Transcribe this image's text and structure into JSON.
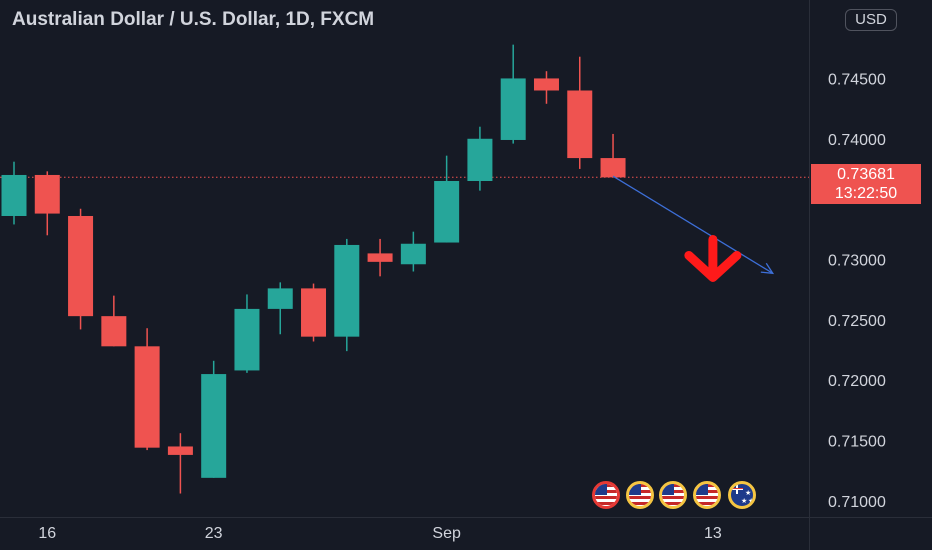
{
  "title": "Australian Dollar / U.S. Dollar, 1D, FXCM",
  "currency_button": "USD",
  "last_price": {
    "value": "0.73681",
    "countdown": "13:22:50"
  },
  "colors": {
    "up": "#26a69a",
    "down": "#ef5350",
    "background": "#161a25",
    "text": "#d1d4dc",
    "grid": "#2a2e39",
    "projection": "#3d6fd8",
    "arrow": "#ff1a1a"
  },
  "event_icons": [
    "us-flag-icon",
    "us-flag-icon",
    "us-flag-icon",
    "us-flag-icon",
    "australia-flag-icon"
  ],
  "chart_data": {
    "type": "candlestick",
    "symbol": "AUDUSD",
    "interval": "1D",
    "y_axis": {
      "side": "right",
      "range": [
        0.7065,
        0.7515
      ],
      "ticks": [
        "0.74500",
        "0.74000",
        "0.73000",
        "0.72500",
        "0.72000",
        "0.71500",
        "0.71000"
      ]
    },
    "x_axis": {
      "ticks": [
        {
          "label": "16",
          "index": 1
        },
        {
          "label": "23",
          "index": 6
        },
        {
          "label": "Sep",
          "index": 13
        },
        {
          "label": "13",
          "index": 21
        }
      ]
    },
    "grid": false,
    "candles": [
      {
        "date": "2021-08-13",
        "open": 0.7336,
        "high": 0.7381,
        "low": 0.7329,
        "close": 0.737
      },
      {
        "date": "2021-08-16",
        "open": 0.737,
        "high": 0.7373,
        "low": 0.732,
        "close": 0.7338
      },
      {
        "date": "2021-08-17",
        "open": 0.7336,
        "high": 0.7342,
        "low": 0.7242,
        "close": 0.7253
      },
      {
        "date": "2021-08-18",
        "open": 0.7253,
        "high": 0.727,
        "low": 0.7228,
        "close": 0.7228
      },
      {
        "date": "2021-08-19",
        "open": 0.7228,
        "high": 0.7243,
        "low": 0.7142,
        "close": 0.7144
      },
      {
        "date": "2021-08-20",
        "open": 0.7145,
        "high": 0.7156,
        "low": 0.7106,
        "close": 0.7138
      },
      {
        "date": "2021-08-23",
        "open": 0.7119,
        "high": 0.7216,
        "low": 0.7119,
        "close": 0.7205
      },
      {
        "date": "2021-08-24",
        "open": 0.7208,
        "high": 0.7271,
        "low": 0.7206,
        "close": 0.7259
      },
      {
        "date": "2021-08-25",
        "open": 0.7259,
        "high": 0.7281,
        "low": 0.7238,
        "close": 0.7276
      },
      {
        "date": "2021-08-26",
        "open": 0.7276,
        "high": 0.728,
        "low": 0.7232,
        "close": 0.7236
      },
      {
        "date": "2021-08-27",
        "open": 0.7236,
        "high": 0.7317,
        "low": 0.7224,
        "close": 0.7312
      },
      {
        "date": "2021-08-30",
        "open": 0.7305,
        "high": 0.7317,
        "low": 0.7286,
        "close": 0.7298
      },
      {
        "date": "2021-08-31",
        "open": 0.7296,
        "high": 0.7323,
        "low": 0.729,
        "close": 0.7313
      },
      {
        "date": "2021-09-01",
        "open": 0.7314,
        "high": 0.7386,
        "low": 0.7314,
        "close": 0.7365
      },
      {
        "date": "2021-09-02",
        "open": 0.7365,
        "high": 0.741,
        "low": 0.7357,
        "close": 0.74
      },
      {
        "date": "2021-09-03",
        "open": 0.7399,
        "high": 0.7478,
        "low": 0.7396,
        "close": 0.745
      },
      {
        "date": "2021-09-06",
        "open": 0.745,
        "high": 0.7456,
        "low": 0.7429,
        "close": 0.744
      },
      {
        "date": "2021-09-07",
        "open": 0.744,
        "high": 0.7468,
        "low": 0.7375,
        "close": 0.7384
      },
      {
        "date": "2021-09-08",
        "open": 0.7384,
        "high": 0.7404,
        "low": 0.7368,
        "close": 0.7368
      }
    ],
    "annotations": [
      {
        "kind": "price-line",
        "value": 0.73681,
        "style": "dotted"
      },
      {
        "kind": "trend-arrow",
        "from": {
          "index": 18,
          "value": 0.7369
        },
        "to": {
          "index": 22.8,
          "value": 0.72885
        }
      },
      {
        "kind": "down-arrow-marker",
        "index": 21,
        "value": 0.7295
      }
    ]
  }
}
